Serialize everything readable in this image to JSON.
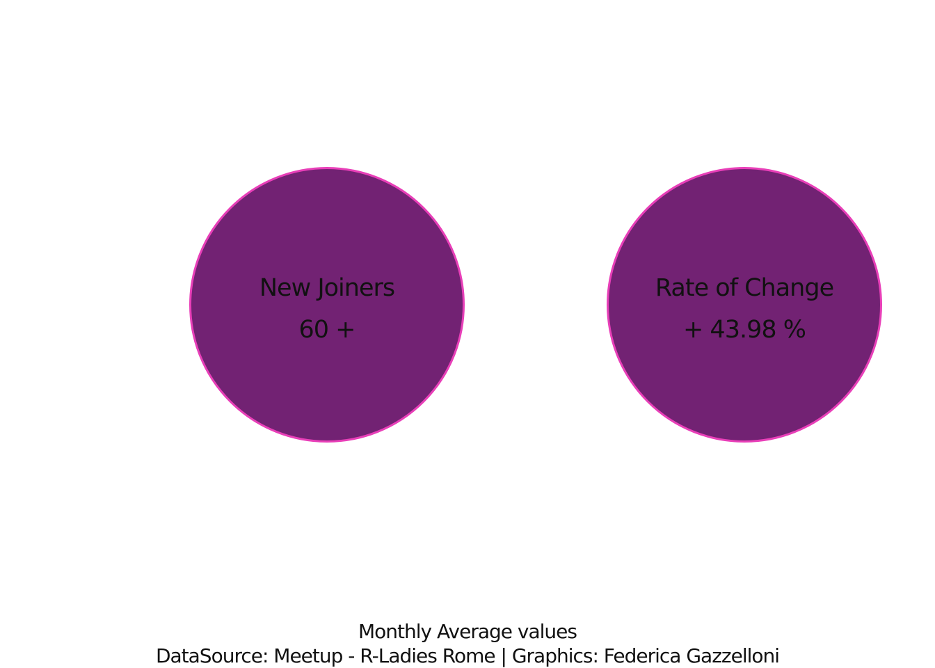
{
  "chart_data": {
    "type": "table",
    "stats": [
      {
        "label": "New Joiners",
        "value": "60 +"
      },
      {
        "label": "Rate of Change",
        "value": "+ 43.98 %"
      }
    ],
    "caption": "Monthly Average values",
    "source": "DataSource: Meetup - R-Ladies Rome | Graphics: Federica Gazzelloni",
    "colors": {
      "fill": "#722273",
      "border": "#e83fb8",
      "text": "#111111",
      "background": "#ffffff"
    }
  }
}
